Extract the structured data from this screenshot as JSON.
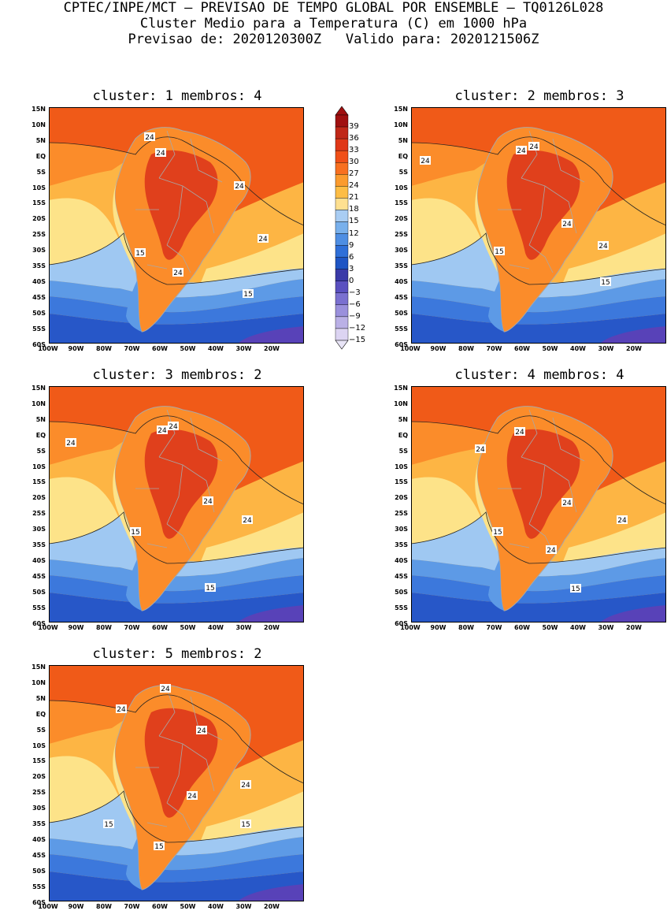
{
  "header": {
    "line1": "CPTEC/INPE/MCT – PREVISAO DE TEMPO GLOBAL POR ENSEMBLE – TQ0126L028",
    "line2": "Cluster Medio para a Temperatura (C) em 1000 hPa",
    "line3": "Previsao de: 2020120300Z   Valido para: 2020121506Z"
  },
  "axes": {
    "lat_labels": [
      "15N",
      "10N",
      "5N",
      "EQ",
      "5S",
      "10S",
      "15S",
      "20S",
      "25S",
      "30S",
      "35S",
      "40S",
      "45S",
      "50S",
      "55S",
      "60S"
    ],
    "lon_labels": [
      "100W",
      "90W",
      "80W",
      "70W",
      "60W",
      "50W",
      "40W",
      "30W",
      "20W"
    ]
  },
  "panels": [
    {
      "title": "cluster: 1   membros: 4",
      "contours": [
        "24",
        "24",
        "24",
        "24",
        "24",
        "15",
        "15"
      ]
    },
    {
      "title": "cluster: 2   membros: 3",
      "contours": [
        "24",
        "24",
        "24",
        "24",
        "24",
        "15",
        "15"
      ]
    },
    {
      "title": "cluster: 3   membros: 2",
      "contours": [
        "24",
        "24",
        "24",
        "24",
        "24",
        "15",
        "15"
      ]
    },
    {
      "title": "cluster: 4   membros: 4",
      "contours": [
        "24",
        "24",
        "24",
        "24",
        "24",
        "15",
        "15"
      ]
    },
    {
      "title": "cluster: 5   membros: 2",
      "contours": [
        "24",
        "24",
        "24",
        "24",
        "24",
        "15",
        "15",
        "15"
      ]
    }
  ],
  "colorbar": {
    "labels": [
      "39",
      "36",
      "33",
      "30",
      "27",
      "24",
      "21",
      "18",
      "15",
      "12",
      "9",
      "6",
      "3",
      "0",
      "−3",
      "−6",
      "−9",
      "−12",
      "−15"
    ],
    "colors": [
      "#a01010",
      "#c02818",
      "#e03818",
      "#f05018",
      "#f87020",
      "#fb9b2e",
      "#fdbd45",
      "#fee090",
      "#a9cdf3",
      "#78b0ec",
      "#4e8ee3",
      "#2f6fd8",
      "#1f55c4",
      "#3a3aa8",
      "#5a50c0",
      "#7a70d0",
      "#9a90dc",
      "#bab0e6",
      "#dcd4f2"
    ],
    "top_arrow_color": "#a01010",
    "bottom_arrow_color": "#e8e4f6"
  },
  "colors": {
    "ocean_warm": "#f05a18",
    "tropic": "#fb8c2a",
    "subtropic": "#fdb544",
    "mid": "#fde389",
    "cool1": "#9fc8f2",
    "cool2": "#5d9ae6",
    "cool3": "#3c78dc",
    "cold": "#2757c8",
    "coldest": "#5842b8",
    "amazon_hot": "#e0401c",
    "land_outline": "#a8a8a8"
  }
}
